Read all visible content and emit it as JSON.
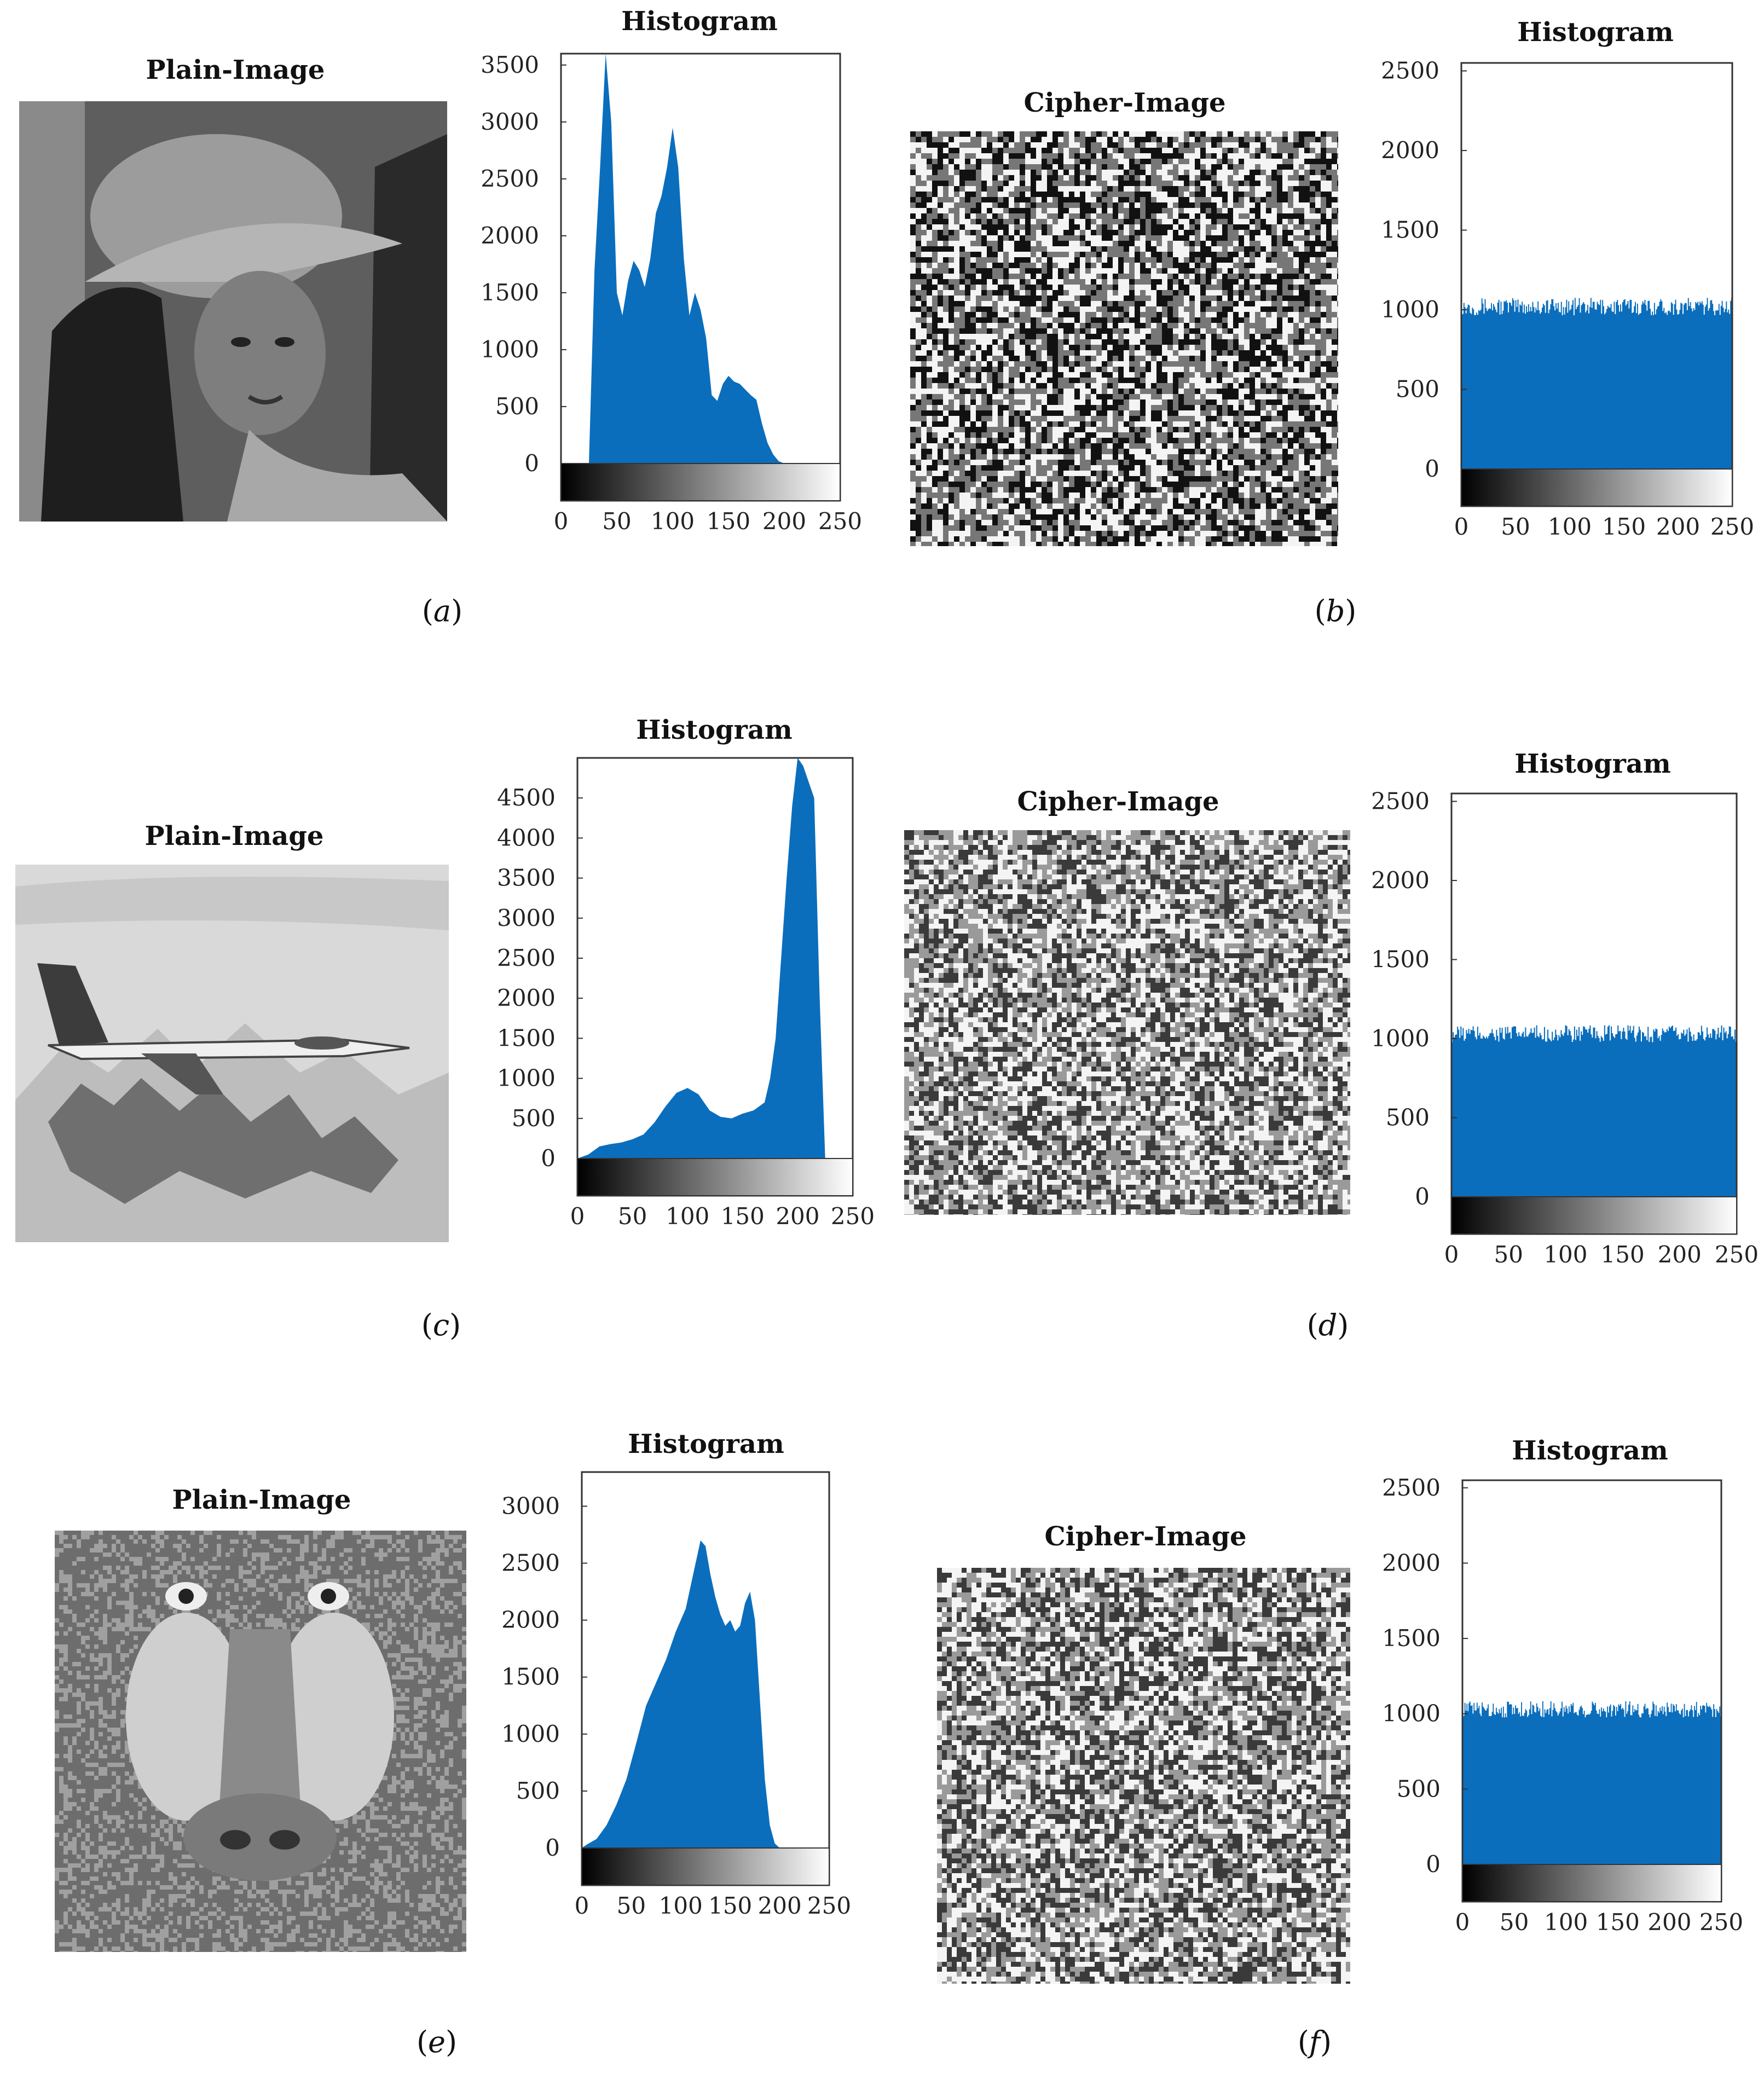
{
  "colors": {
    "bar": "#0a6ebd",
    "axis": "#333333"
  },
  "panels": [
    {
      "id": "a",
      "label": "a",
      "title": "Plain-Image",
      "image": "lena"
    },
    {
      "id": "b",
      "label": "b",
      "title": "Cipher-Image",
      "image": "cipher"
    },
    {
      "id": "c",
      "label": "c",
      "title": "Plain-Image",
      "image": "airplane"
    },
    {
      "id": "d",
      "label": "d",
      "title": "Cipher-Image",
      "image": "cipher"
    },
    {
      "id": "e",
      "label": "e",
      "title": "Plain-Image",
      "image": "baboon"
    },
    {
      "id": "f",
      "label": "f",
      "title": "Cipher-Image",
      "image": "cipher"
    }
  ],
  "chart_data": [
    {
      "type": "area",
      "panel": "a",
      "title": "Histogram",
      "xlim": [
        0,
        250
      ],
      "ylim": [
        0,
        3600
      ],
      "xticks": [
        0,
        50,
        100,
        150,
        200,
        250
      ],
      "yticks": [
        0,
        500,
        1000,
        1500,
        2000,
        2500,
        3000,
        3500
      ],
      "x": [
        0,
        25,
        30,
        35,
        40,
        45,
        50,
        55,
        60,
        65,
        70,
        75,
        80,
        85,
        90,
        95,
        100,
        105,
        110,
        115,
        120,
        125,
        130,
        135,
        140,
        145,
        150,
        155,
        160,
        165,
        170,
        175,
        180,
        185,
        190,
        195,
        200,
        205,
        250
      ],
      "values": [
        0,
        0,
        1700,
        2600,
        3600,
        3000,
        1500,
        1300,
        1600,
        1780,
        1700,
        1550,
        1800,
        2200,
        2350,
        2600,
        2950,
        2600,
        1800,
        1300,
        1500,
        1350,
        1100,
        600,
        550,
        700,
        770,
        720,
        700,
        650,
        600,
        560,
        350,
        180,
        80,
        20,
        0,
        0,
        0
      ]
    },
    {
      "type": "area",
      "panel": "b",
      "title": "Histogram",
      "xlim": [
        0,
        250
      ],
      "ylim": [
        0,
        2550
      ],
      "xticks": [
        0,
        50,
        100,
        150,
        200,
        250
      ],
      "yticks": [
        0,
        500,
        1000,
        1500,
        2000,
        2500
      ],
      "x": [
        0,
        250
      ],
      "values": [
        1020,
        1020
      ]
    },
    {
      "type": "area",
      "panel": "c",
      "title": "Histogram",
      "xlim": [
        0,
        250
      ],
      "ylim": [
        0,
        5000
      ],
      "xticks": [
        0,
        50,
        100,
        150,
        200,
        250
      ],
      "yticks": [
        0,
        500,
        1000,
        1500,
        2000,
        2500,
        3000,
        3500,
        4000,
        4500
      ],
      "x": [
        0,
        10,
        20,
        30,
        40,
        50,
        60,
        70,
        80,
        90,
        100,
        110,
        120,
        130,
        140,
        150,
        160,
        170,
        175,
        180,
        185,
        190,
        195,
        200,
        205,
        210,
        215,
        220,
        225,
        250
      ],
      "values": [
        0,
        50,
        150,
        180,
        200,
        240,
        300,
        450,
        650,
        820,
        880,
        800,
        600,
        520,
        500,
        560,
        600,
        700,
        1000,
        1500,
        2500,
        3500,
        4400,
        5000,
        4900,
        4700,
        4500,
        2000,
        0,
        0
      ]
    },
    {
      "type": "area",
      "panel": "d",
      "title": "Histogram",
      "xlim": [
        0,
        250
      ],
      "ylim": [
        0,
        2550
      ],
      "xticks": [
        0,
        50,
        100,
        150,
        200,
        250
      ],
      "yticks": [
        0,
        500,
        1000,
        1500,
        2000,
        2500
      ],
      "x": [
        0,
        250
      ],
      "values": [
        1030,
        1030
      ]
    },
    {
      "type": "area",
      "panel": "e",
      "title": "Histogram",
      "xlim": [
        0,
        250
      ],
      "ylim": [
        0,
        3300
      ],
      "xticks": [
        0,
        50,
        100,
        150,
        200,
        250
      ],
      "yticks": [
        0,
        500,
        1000,
        1500,
        2000,
        2500,
        3000
      ],
      "x": [
        0,
        5,
        15,
        25,
        35,
        45,
        55,
        65,
        75,
        85,
        95,
        105,
        110,
        115,
        120,
        125,
        130,
        135,
        140,
        145,
        150,
        155,
        160,
        165,
        170,
        175,
        180,
        185,
        190,
        195,
        200,
        250
      ],
      "values": [
        0,
        30,
        80,
        200,
        380,
        600,
        920,
        1250,
        1450,
        1650,
        1900,
        2100,
        2300,
        2500,
        2700,
        2650,
        2400,
        2200,
        2050,
        1950,
        2000,
        1900,
        1950,
        2150,
        2250,
        2000,
        1300,
        600,
        200,
        40,
        0,
        0
      ]
    },
    {
      "type": "area",
      "panel": "f",
      "title": "Histogram",
      "xlim": [
        0,
        250
      ],
      "ylim": [
        0,
        2550
      ],
      "xticks": [
        0,
        50,
        100,
        150,
        200,
        250
      ],
      "yticks": [
        0,
        500,
        1000,
        1500,
        2000,
        2500
      ],
      "x": [
        0,
        250
      ],
      "values": [
        1030,
        1030
      ]
    }
  ]
}
